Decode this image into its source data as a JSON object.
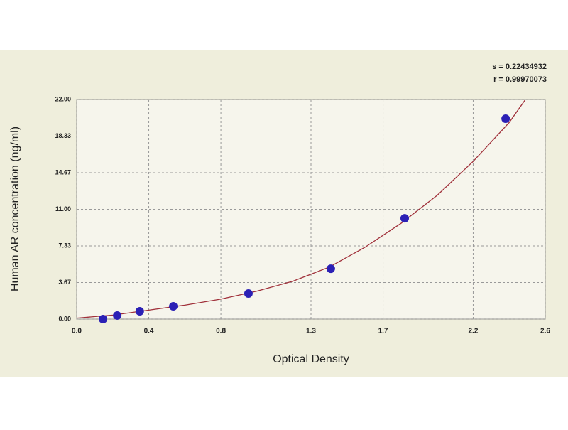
{
  "chart_data": {
    "type": "scatter",
    "xlabel": "Optical Density",
    "ylabel": "Human AR concentration (ng/ml)",
    "annotations": [
      "s = 0.22434932",
      "r = 0.99970073"
    ],
    "x": [
      0.146,
      0.225,
      0.35,
      0.536,
      0.953,
      1.41,
      1.82,
      2.38
    ],
    "series": [
      {
        "color": "#2b20b5",
        "values": [
          0.0,
          0.36,
          0.78,
          1.28,
          2.56,
          5.05,
          10.1,
          20.08
        ]
      }
    ],
    "fit": {
      "color": "#a0303a",
      "x": [
        0,
        0.2,
        0.4,
        0.6,
        0.8,
        1.0,
        1.2,
        1.4,
        1.6,
        1.8,
        2.0,
        2.2,
        2.4,
        2.49
      ],
      "values": [
        0.1,
        0.4,
        0.9,
        1.4,
        2.0,
        2.8,
        3.8,
        5.2,
        7.2,
        9.6,
        12.4,
        15.8,
        19.7,
        22.0
      ]
    },
    "xlim": [
      0,
      2.6
    ],
    "xticks": [
      {
        "value": 0,
        "label": "0.0"
      },
      0.4,
      0.8,
      1.3,
      1.7,
      2.2,
      2.6
    ],
    "ylim": [
      0,
      22
    ],
    "yticks": [
      {
        "value": 0,
        "label": "0.00"
      },
      3.67,
      7.33,
      {
        "value": 11,
        "label": "11.00"
      },
      14.67,
      18.33,
      {
        "value": 22,
        "label": "22.00"
      }
    ],
    "grid": true
  }
}
